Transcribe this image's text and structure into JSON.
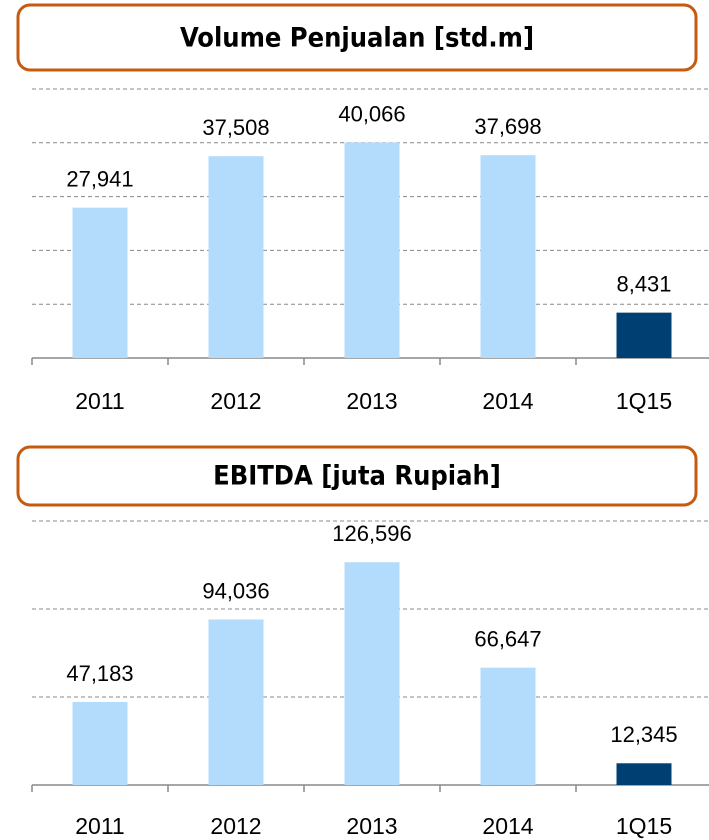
{
  "chart_data": [
    {
      "type": "bar",
      "title": "Volume Penjualan [std.m]",
      "categories": [
        "2011",
        "2012",
        "2013",
        "2014",
        "1Q15"
      ],
      "values": [
        27941,
        37508,
        40066,
        37698,
        8431
      ],
      "value_labels": [
        "27,941",
        "37,508",
        "40,066",
        "37,698",
        "8,431"
      ],
      "colors": [
        "#b3dbfb",
        "#b3dbfb",
        "#b3dbfb",
        "#b3dbfb",
        "#003f72"
      ],
      "ylim": [
        0,
        50000
      ],
      "yticks": [
        0,
        10000,
        20000,
        30000,
        40000,
        50000
      ],
      "grid": true
    },
    {
      "type": "bar",
      "title": "EBITDA [juta Rupiah]",
      "categories": [
        "2011",
        "2012",
        "2013",
        "2014",
        "1Q15"
      ],
      "values": [
        47183,
        94036,
        126596,
        66647,
        12345
      ],
      "value_labels": [
        "47,183",
        "94,036",
        "126,596",
        "66,647",
        "12,345"
      ],
      "colors": [
        "#b3dbfb",
        "#b3dbfb",
        "#b3dbfb",
        "#b3dbfb",
        "#003f72"
      ],
      "ylim": [
        0,
        150000
      ],
      "yticks": [
        0,
        50000,
        100000,
        150000
      ],
      "grid": true
    }
  ]
}
